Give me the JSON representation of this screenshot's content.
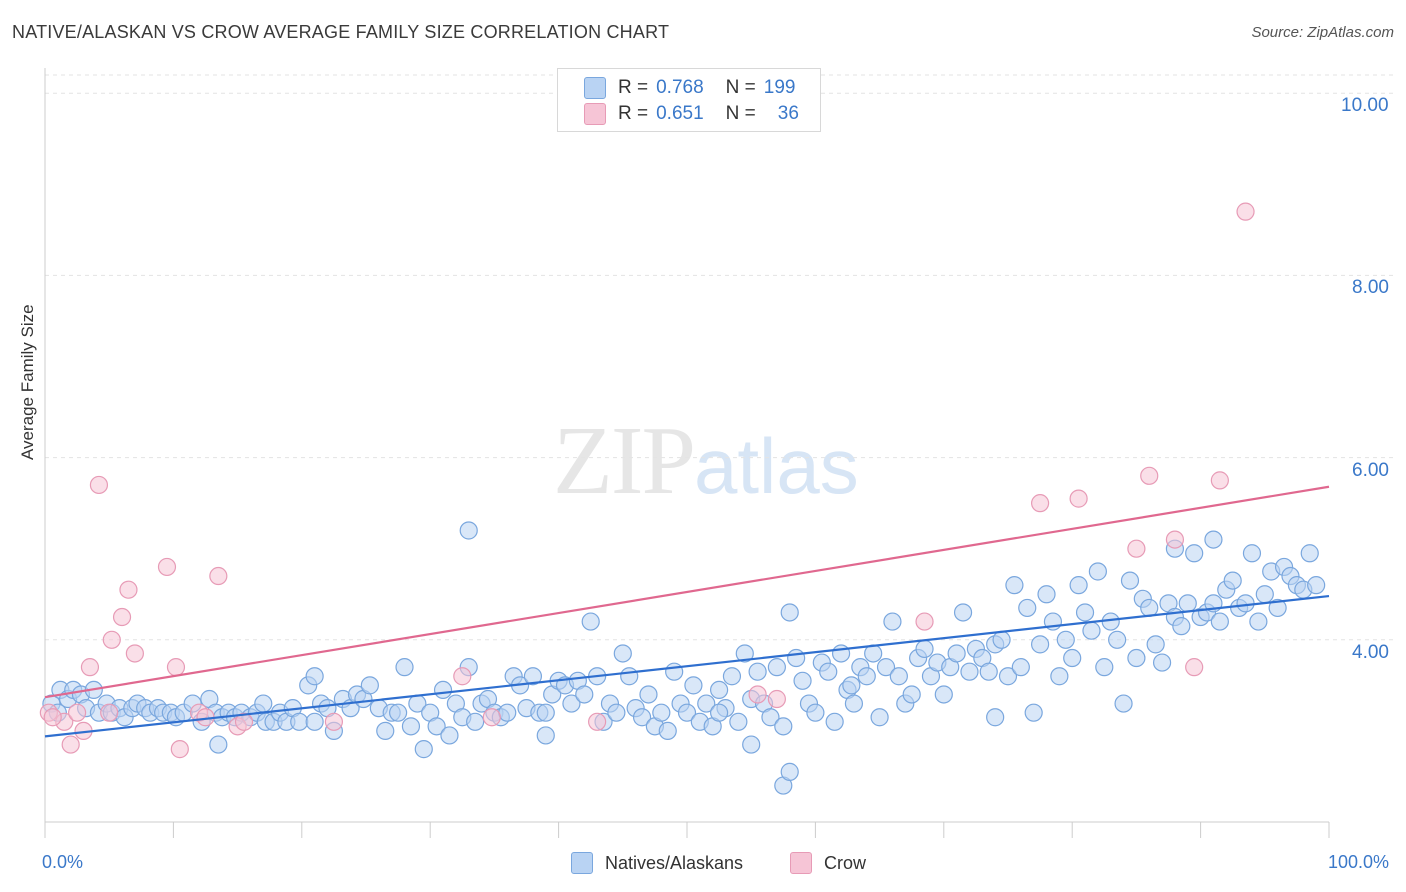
{
  "title": "NATIVE/ALASKAN VS CROW AVERAGE FAMILY SIZE CORRELATION CHART",
  "source": "Source: ZipAtlas.com",
  "watermark": {
    "zip": "ZIP",
    "atlas": "atlas"
  },
  "colors": {
    "blue_fill": "#b9d3f3",
    "blue_stroke": "#7aa7de",
    "blue_line": "#2f6fcf",
    "pink_fill": "#f6c5d6",
    "pink_stroke": "#e79bb6",
    "pink_line": "#e0688f",
    "axis_text": "#3a78c9",
    "grid": "#e3e3e3"
  },
  "legend": {
    "r_label": "R =",
    "n_label": "N =",
    "rows": [
      {
        "series": "Natives/Alaskans",
        "r": "0.768",
        "n": "199"
      },
      {
        "series": "Crow",
        "r": "0.651",
        "n": "36"
      }
    ]
  },
  "chart_data": {
    "type": "scatter",
    "title": "NATIVE/ALASKAN VS CROW AVERAGE FAMILY SIZE CORRELATION CHART",
    "xlabel": "",
    "ylabel": "Average Family Size",
    "xlim": [
      0,
      100
    ],
    "ylim": [
      2.0,
      10.2
    ],
    "x_tick_labels": [
      "0.0%",
      "100.0%"
    ],
    "y_ticks": [
      4.0,
      6.0,
      8.0,
      10.0
    ],
    "y_tick_labels": [
      "4.00",
      "6.00",
      "8.00",
      "10.00"
    ],
    "grid": true,
    "legend_position": "top-center",
    "series": [
      {
        "name": "Natives/Alaskans",
        "trend": {
          "x": [
            0,
            100
          ],
          "y": [
            2.94,
            4.48
          ]
        },
        "points": [
          [
            0.5,
            3.3
          ],
          [
            1.0,
            3.2
          ],
          [
            1.2,
            3.45
          ],
          [
            1.8,
            3.35
          ],
          [
            2.2,
            3.45
          ],
          [
            2.8,
            3.4
          ],
          [
            3.2,
            3.25
          ],
          [
            3.8,
            3.45
          ],
          [
            4.2,
            3.2
          ],
          [
            4.8,
            3.3
          ],
          [
            5.2,
            3.2
          ],
          [
            5.8,
            3.25
          ],
          [
            6.2,
            3.15
          ],
          [
            6.8,
            3.25
          ],
          [
            7.2,
            3.3
          ],
          [
            7.8,
            3.25
          ],
          [
            8.2,
            3.2
          ],
          [
            8.8,
            3.25
          ],
          [
            9.2,
            3.2
          ],
          [
            9.8,
            3.2
          ],
          [
            10.2,
            3.15
          ],
          [
            10.8,
            3.2
          ],
          [
            11.5,
            3.3
          ],
          [
            12.2,
            3.1
          ],
          [
            12.8,
            3.35
          ],
          [
            13.3,
            3.2
          ],
          [
            13.8,
            3.15
          ],
          [
            14.3,
            3.2
          ],
          [
            14.8,
            3.15
          ],
          [
            15.3,
            3.2
          ],
          [
            16.0,
            3.15
          ],
          [
            16.5,
            3.2
          ],
          [
            17.2,
            3.1
          ],
          [
            17.8,
            3.1
          ],
          [
            18.3,
            3.2
          ],
          [
            18.8,
            3.1
          ],
          [
            19.3,
            3.25
          ],
          [
            19.8,
            3.1
          ],
          [
            20.5,
            3.5
          ],
          [
            21.0,
            3.1
          ],
          [
            21.5,
            3.3
          ],
          [
            22.0,
            3.25
          ],
          [
            22.5,
            3.0
          ],
          [
            23.2,
            3.35
          ],
          [
            23.8,
            3.25
          ],
          [
            24.3,
            3.4
          ],
          [
            24.8,
            3.35
          ],
          [
            25.3,
            3.5
          ],
          [
            26.0,
            3.25
          ],
          [
            26.5,
            3.0
          ],
          [
            27.0,
            3.2
          ],
          [
            27.5,
            3.2
          ],
          [
            28.0,
            3.7
          ],
          [
            28.5,
            3.05
          ],
          [
            29.0,
            3.3
          ],
          [
            29.5,
            2.8
          ],
          [
            30.0,
            3.2
          ],
          [
            30.5,
            3.05
          ],
          [
            31.0,
            3.45
          ],
          [
            31.5,
            2.95
          ],
          [
            32.0,
            3.3
          ],
          [
            32.5,
            3.15
          ],
          [
            33.0,
            3.7
          ],
          [
            33.5,
            3.1
          ],
          [
            34.0,
            3.3
          ],
          [
            34.5,
            3.35
          ],
          [
            35.0,
            3.2
          ],
          [
            35.5,
            3.15
          ],
          [
            36.0,
            3.2
          ],
          [
            36.5,
            3.6
          ],
          [
            37.0,
            3.5
          ],
          [
            37.5,
            3.25
          ],
          [
            38.0,
            3.6
          ],
          [
            38.5,
            3.2
          ],
          [
            39.0,
            3.2
          ],
          [
            39.5,
            3.4
          ],
          [
            40.0,
            3.55
          ],
          [
            40.5,
            3.5
          ],
          [
            41.0,
            3.3
          ],
          [
            41.5,
            3.55
          ],
          [
            42.0,
            3.4
          ],
          [
            42.5,
            4.2
          ],
          [
            43.0,
            3.6
          ],
          [
            43.5,
            3.1
          ],
          [
            44.0,
            3.3
          ],
          [
            44.5,
            3.2
          ],
          [
            45.0,
            3.85
          ],
          [
            45.5,
            3.6
          ],
          [
            46.0,
            3.25
          ],
          [
            46.5,
            3.15
          ],
          [
            47.0,
            3.4
          ],
          [
            47.5,
            3.05
          ],
          [
            48.0,
            3.2
          ],
          [
            48.5,
            3.0
          ],
          [
            49.0,
            3.65
          ],
          [
            49.5,
            3.3
          ],
          [
            50.0,
            3.2
          ],
          [
            50.5,
            3.5
          ],
          [
            51.0,
            3.1
          ],
          [
            51.5,
            3.3
          ],
          [
            52.0,
            3.05
          ],
          [
            52.5,
            3.45
          ],
          [
            53.0,
            3.25
          ],
          [
            53.5,
            3.6
          ],
          [
            54.0,
            3.1
          ],
          [
            54.5,
            3.85
          ],
          [
            55.0,
            3.35
          ],
          [
            55.5,
            3.65
          ],
          [
            56.0,
            3.3
          ],
          [
            56.5,
            3.15
          ],
          [
            57.0,
            3.7
          ],
          [
            57.5,
            3.05
          ],
          [
            58.0,
            4.3
          ],
          [
            58.5,
            3.8
          ],
          [
            59.0,
            3.55
          ],
          [
            59.5,
            3.3
          ],
          [
            60.0,
            3.2
          ],
          [
            60.5,
            3.75
          ],
          [
            61.0,
            3.65
          ],
          [
            61.5,
            3.1
          ],
          [
            62.0,
            3.85
          ],
          [
            62.5,
            3.45
          ],
          [
            63.0,
            3.3
          ],
          [
            63.5,
            3.7
          ],
          [
            64.0,
            3.6
          ],
          [
            64.5,
            3.85
          ],
          [
            65.0,
            3.15
          ],
          [
            65.5,
            3.7
          ],
          [
            66.0,
            4.2
          ],
          [
            66.5,
            3.6
          ],
          [
            67.0,
            3.3
          ],
          [
            67.5,
            3.4
          ],
          [
            68.0,
            3.8
          ],
          [
            68.5,
            3.9
          ],
          [
            69.0,
            3.6
          ],
          [
            69.5,
            3.75
          ],
          [
            70.0,
            3.4
          ],
          [
            70.5,
            3.7
          ],
          [
            71.0,
            3.85
          ],
          [
            71.5,
            4.3
          ],
          [
            72.0,
            3.65
          ],
          [
            72.5,
            3.9
          ],
          [
            73.0,
            3.8
          ],
          [
            73.5,
            3.65
          ],
          [
            74.0,
            3.95
          ],
          [
            74.5,
            4.0
          ],
          [
            75.0,
            3.6
          ],
          [
            75.5,
            4.6
          ],
          [
            76.0,
            3.7
          ],
          [
            76.5,
            4.35
          ],
          [
            77.0,
            3.2
          ],
          [
            77.5,
            3.95
          ],
          [
            78.0,
            4.5
          ],
          [
            78.5,
            4.2
          ],
          [
            79.0,
            3.6
          ],
          [
            79.5,
            4.0
          ],
          [
            80.0,
            3.8
          ],
          [
            80.5,
            4.6
          ],
          [
            81.0,
            4.3
          ],
          [
            81.5,
            4.1
          ],
          [
            82.0,
            4.75
          ],
          [
            82.5,
            3.7
          ],
          [
            83.0,
            4.2
          ],
          [
            83.5,
            4.0
          ],
          [
            84.0,
            3.3
          ],
          [
            84.5,
            4.65
          ],
          [
            85.0,
            3.8
          ],
          [
            85.5,
            4.45
          ],
          [
            86.0,
            4.35
          ],
          [
            86.5,
            3.95
          ],
          [
            87.0,
            3.75
          ],
          [
            87.5,
            4.4
          ],
          [
            88.0,
            4.25
          ],
          [
            88.5,
            4.15
          ],
          [
            89.0,
            4.4
          ],
          [
            89.5,
            4.95
          ],
          [
            90.0,
            4.25
          ],
          [
            90.5,
            4.3
          ],
          [
            91.0,
            4.4
          ],
          [
            91.5,
            4.2
          ],
          [
            92.0,
            4.55
          ],
          [
            92.5,
            4.65
          ],
          [
            93.0,
            4.35
          ],
          [
            93.5,
            4.4
          ],
          [
            94.0,
            4.95
          ],
          [
            94.5,
            4.2
          ],
          [
            95.0,
            4.5
          ],
          [
            95.5,
            4.75
          ],
          [
            96.0,
            4.35
          ],
          [
            96.5,
            4.8
          ],
          [
            97.0,
            4.7
          ],
          [
            97.5,
            4.6
          ],
          [
            98.0,
            4.55
          ],
          [
            98.5,
            4.95
          ],
          [
            99.0,
            4.6
          ],
          [
            33.0,
            5.2
          ],
          [
            55.0,
            2.85
          ],
          [
            57.5,
            2.4
          ],
          [
            58.0,
            2.55
          ],
          [
            52.5,
            3.2
          ],
          [
            17.0,
            3.3
          ],
          [
            21.0,
            3.6
          ],
          [
            13.5,
            2.85
          ],
          [
            39.0,
            2.95
          ],
          [
            88.0,
            5.0
          ],
          [
            91.0,
            5.1
          ],
          [
            74.0,
            3.15
          ],
          [
            62.8,
            3.5
          ]
        ]
      },
      {
        "name": "Crow",
        "trend": {
          "x": [
            0,
            100
          ],
          "y": [
            3.37,
            5.68
          ]
        },
        "points": [
          [
            0.3,
            3.2
          ],
          [
            1.5,
            3.1
          ],
          [
            2.0,
            2.85
          ],
          [
            2.5,
            3.2
          ],
          [
            3.0,
            3.0
          ],
          [
            3.5,
            3.7
          ],
          [
            4.2,
            5.7
          ],
          [
            5.0,
            3.2
          ],
          [
            5.2,
            4.0
          ],
          [
            6.0,
            4.25
          ],
          [
            6.5,
            4.55
          ],
          [
            7.0,
            3.85
          ],
          [
            9.5,
            4.8
          ],
          [
            10.2,
            3.7
          ],
          [
            10.5,
            2.8
          ],
          [
            12.0,
            3.2
          ],
          [
            12.5,
            3.15
          ],
          [
            13.5,
            4.7
          ],
          [
            15.0,
            3.05
          ],
          [
            15.5,
            3.1
          ],
          [
            22.5,
            3.1
          ],
          [
            32.5,
            3.6
          ],
          [
            34.8,
            3.15
          ],
          [
            43.0,
            3.1
          ],
          [
            55.5,
            3.4
          ],
          [
            57.0,
            3.35
          ],
          [
            68.5,
            4.2
          ],
          [
            77.5,
            5.5
          ],
          [
            80.5,
            5.55
          ],
          [
            85.0,
            5.0
          ],
          [
            86.0,
            5.8
          ],
          [
            88.0,
            5.1
          ],
          [
            91.5,
            5.75
          ],
          [
            89.5,
            3.7
          ],
          [
            93.5,
            8.7
          ],
          [
            0.6,
            3.15
          ]
        ]
      }
    ]
  },
  "bottom_legend": [
    "Natives/Alaskans",
    "Crow"
  ],
  "axis": {
    "x_min_label": "0.0%",
    "x_max_label": "100.0%",
    "ylabel": "Average Family Size"
  }
}
